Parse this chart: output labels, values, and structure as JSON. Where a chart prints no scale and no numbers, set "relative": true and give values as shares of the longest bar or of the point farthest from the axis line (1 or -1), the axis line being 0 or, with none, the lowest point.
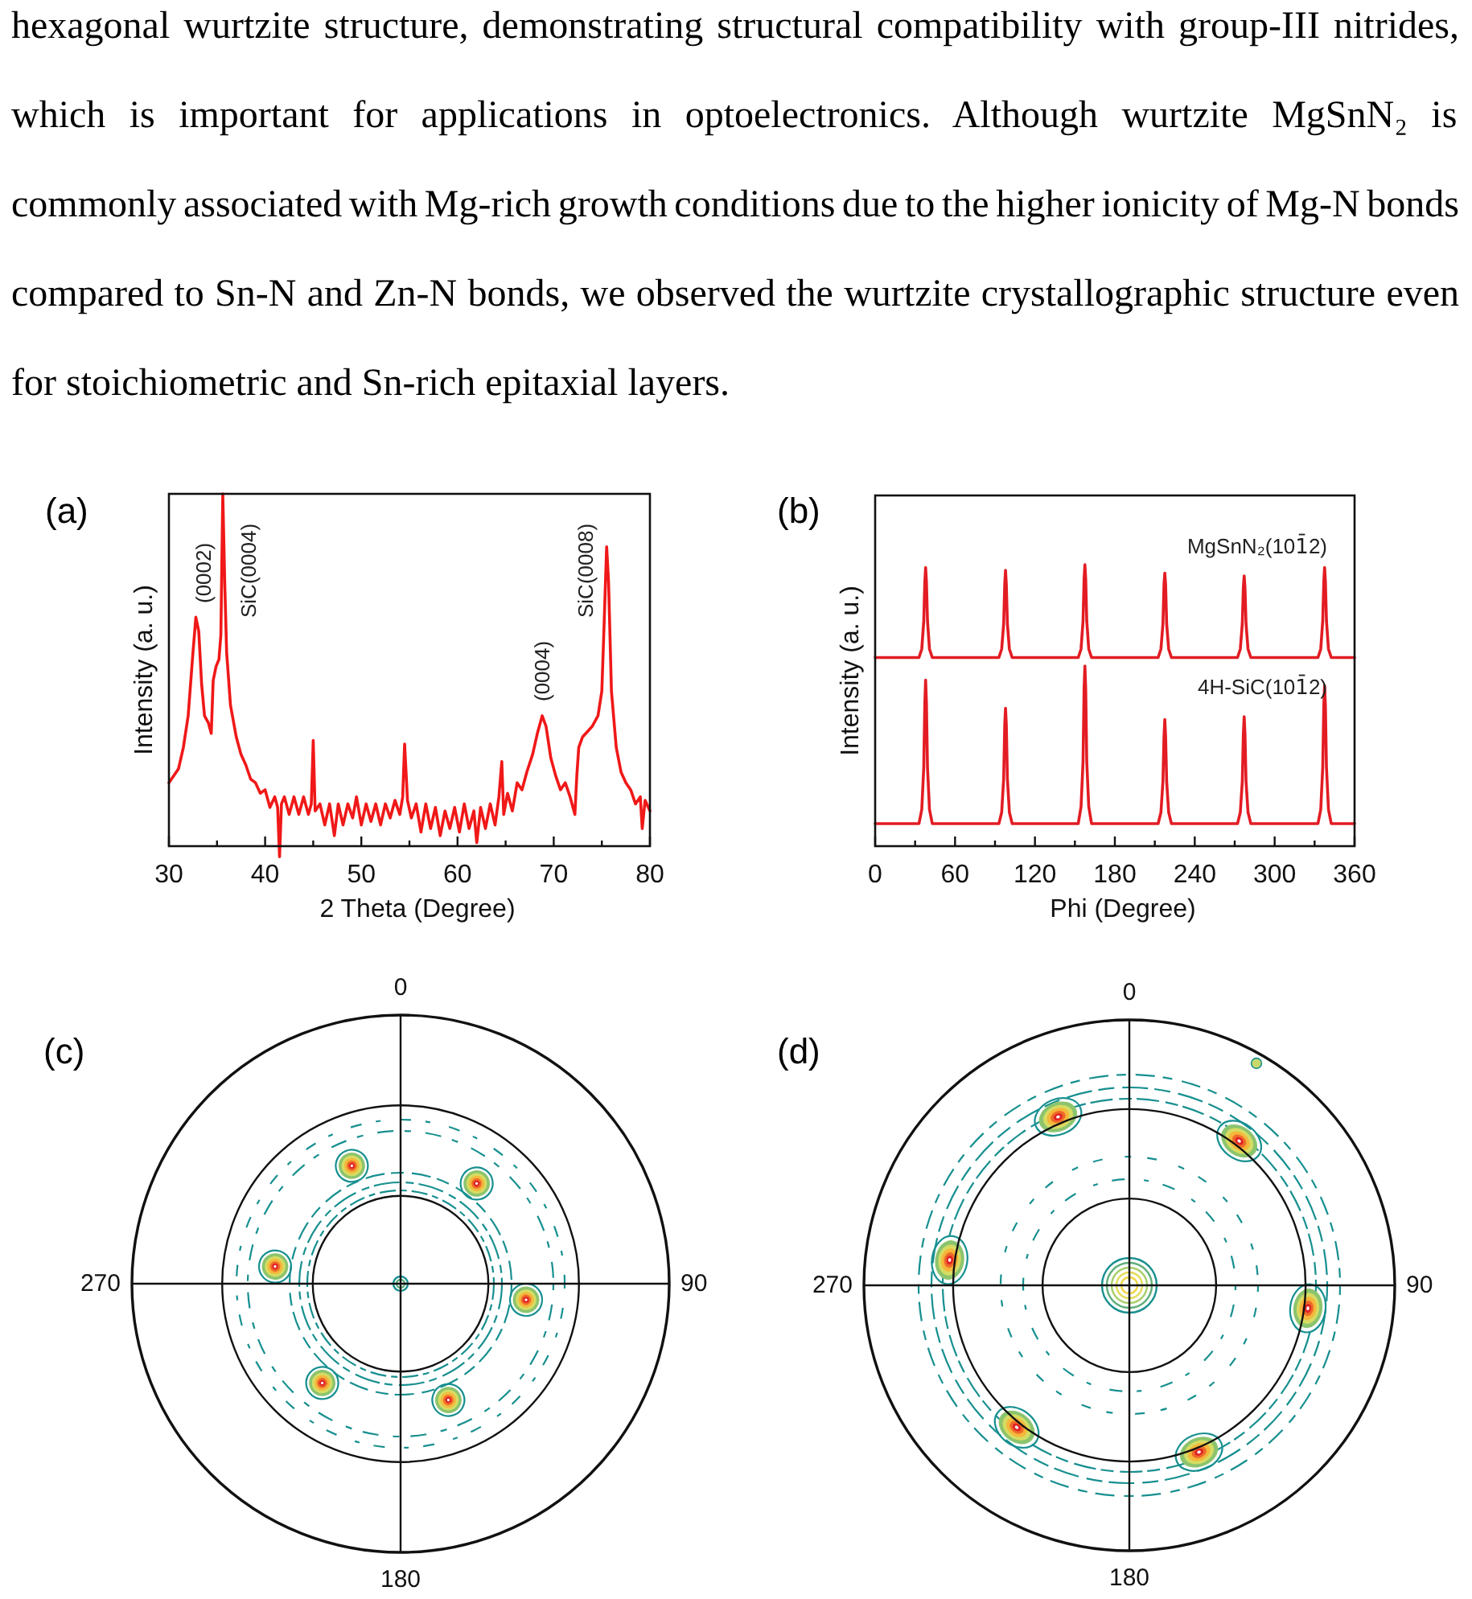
{
  "chart_data": [
    {
      "type": "other",
      "annotations": [
        "hexagonal wurtzite structure, demonstrating structural compatibility with group-III nitrides,",
        "which is important for applications in optoelectronics. Although wurtzite MgSnN₂ is",
        "commonly associated with Mg-rich growth conditions due to the higher ionicity of Mg-N bonds",
        "compared to Sn-N and Zn-N bonds, we observed the wurtzite crystallographic structure even",
        "for stoichiometric and Sn-rich epitaxial layers."
      ]
    },
    {
      "type": "line",
      "title": "(a)",
      "xlabel": "2 Theta (Degree)",
      "ylabel": "Intensity (a. u.)",
      "relative": true,
      "x": [
        30,
        30.5,
        31,
        31.5,
        32,
        32.5,
        32.8,
        33.1,
        33.4,
        33.7,
        34.1,
        34.4,
        34.6,
        34.9,
        35.2,
        35.4,
        35.6,
        35.8,
        36,
        36.4,
        37,
        37.5,
        38,
        38.5,
        39,
        39.5,
        40,
        40.5,
        41,
        41.3,
        41.5,
        41.7,
        42,
        42.5,
        43,
        43.5,
        44,
        44.5,
        44.8,
        45,
        45.2,
        45.7,
        46.2,
        46.7,
        47.2,
        47.6,
        48.1,
        48.6,
        49.1,
        49.5,
        50,
        50.5,
        51,
        51.5,
        52,
        52.5,
        53,
        53.5,
        54,
        54.3,
        54.5,
        54.8,
        55.2,
        55.7,
        56.2,
        56.7,
        57.2,
        57.7,
        58.2,
        58.7,
        59.2,
        59.7,
        60.2,
        60.7,
        61.2,
        61.7,
        62,
        62.4,
        62.9,
        63.4,
        63.9,
        64.3,
        64.6,
        64.8,
        65.2,
        65.7,
        66.2,
        66.7,
        67.2,
        67.8,
        68.3,
        68.8,
        69.2,
        69.7,
        70.2,
        70.7,
        71.2,
        71.7,
        72.2,
        72.4,
        72.6,
        73,
        74,
        74.6,
        75,
        75.2,
        75.5,
        75.7,
        76,
        76.5,
        77,
        77.5,
        78,
        78.5,
        79,
        79.2,
        79.5,
        80
      ],
      "series": [
        {
          "color": "#f01818",
          "values": [
            0.18,
            0.2,
            0.22,
            0.28,
            0.37,
            0.55,
            0.65,
            0.61,
            0.46,
            0.37,
            0.35,
            0.32,
            0.47,
            0.51,
            0.53,
            0.6,
            1,
            0.75,
            0.55,
            0.4,
            0.31,
            0.26,
            0.23,
            0.19,
            0.18,
            0.15,
            0.16,
            0.11,
            0.14,
            0.11,
            -0.03,
            0.12,
            0.14,
            0.09,
            0.14,
            0.09,
            0.14,
            0.09,
            0.12,
            0.3,
            0.1,
            0.12,
            0.06,
            0.12,
            0.03,
            0.12,
            0.06,
            0.12,
            0.08,
            0.14,
            0.06,
            0.12,
            0.07,
            0.12,
            0.06,
            0.12,
            0.08,
            0.13,
            0.09,
            0.14,
            0.29,
            0.13,
            0.08,
            0.12,
            0.04,
            0.12,
            0.05,
            0.11,
            0.03,
            0.1,
            0.05,
            0.11,
            0.04,
            0.12,
            0.05,
            0.1,
            0.01,
            0.11,
            0.05,
            0.12,
            0.06,
            0.14,
            0.24,
            0.09,
            0.15,
            0.1,
            0.18,
            0.16,
            0.21,
            0.26,
            0.32,
            0.37,
            0.34,
            0.25,
            0.2,
            0.16,
            0.18,
            0.14,
            0.09,
            0.2,
            0.28,
            0.31,
            0.34,
            0.37,
            0.44,
            0.6,
            0.85,
            0.75,
            0.44,
            0.28,
            0.21,
            0.18,
            0.16,
            0.12,
            0.14,
            0.05,
            0.13,
            0.1
          ]
        }
      ],
      "xlim": [
        30,
        80
      ],
      "xticks": [
        30,
        {
          "value": 35,
          "label": null
        },
        40,
        {
          "value": 45,
          "label": null
        },
        50,
        {
          "value": 55,
          "label": null
        },
        60,
        {
          "value": 65,
          "label": null
        },
        70,
        {
          "value": 75,
          "label": null
        },
        80
      ],
      "annotations": [
        "(0002)",
        "SiC(0004)",
        "(0004)",
        "SiC(0008)"
      ]
    },
    {
      "type": "line",
      "title": "(b)",
      "xlabel": "Phi (Degree)",
      "ylabel": "Intensity (a. u.)",
      "relative": true,
      "x": [
        0,
        32.9,
        35,
        36.5,
        37.3,
        37.9,
        38.5,
        39.3,
        40.8,
        42.9,
        92.9,
        95,
        96.5,
        97.3,
        97.9,
        98.5,
        99.3,
        100.8,
        102.9,
        152.5,
        154.6,
        156.1,
        156.9,
        157.5,
        158.1,
        158.9,
        160.4,
        162.5,
        212.5,
        214.6,
        216.1,
        216.9,
        217.5,
        218.1,
        218.9,
        220.4,
        222.5,
        272.1,
        274.2,
        275.7,
        276.5,
        277.1,
        277.7,
        278.5,
        280,
        282.1,
        332.5,
        334.6,
        336.1,
        336.9,
        337.5,
        338.1,
        338.9,
        340.4,
        342.5,
        360
      ],
      "series": [
        {
          "name": "MgSnN₂(101̄2)",
          "color": "#e31c23",
          "values": [
            0.67,
            0.67,
            0.7,
            0.8,
            0.94,
            0.99,
            0.94,
            0.8,
            0.7,
            0.67,
            0.67,
            0.7,
            0.79,
            0.93,
            0.98,
            0.93,
            0.79,
            0.7,
            0.67,
            0.67,
            0.7,
            0.8,
            0.95,
            1,
            0.95,
            0.8,
            0.7,
            0.67,
            0.67,
            0.7,
            0.79,
            0.93,
            0.97,
            0.93,
            0.79,
            0.7,
            0.67,
            0.67,
            0.7,
            0.79,
            0.92,
            0.96,
            0.92,
            0.79,
            0.7,
            0.67,
            0.67,
            0.7,
            0.8,
            0.94,
            0.99,
            0.94,
            0.8,
            0.7,
            0.67,
            0.67
          ]
        },
        {
          "name": "4H-SiC(101̄2)",
          "color": "#e31c23",
          "values": [
            0.08,
            0.08,
            0.13,
            0.28,
            0.51,
            0.59,
            0.51,
            0.28,
            0.13,
            0.08,
            0.08,
            0.12,
            0.24,
            0.43,
            0.49,
            0.43,
            0.24,
            0.12,
            0.08,
            0.08,
            0.14,
            0.3,
            0.56,
            0.64,
            0.56,
            0.3,
            0.14,
            0.08,
            0.08,
            0.12,
            0.23,
            0.39,
            0.45,
            0.39,
            0.23,
            0.12,
            0.08,
            0.08,
            0.12,
            0.23,
            0.4,
            0.46,
            0.4,
            0.23,
            0.12,
            0.08,
            0.08,
            0.13,
            0.28,
            0.5,
            0.57,
            0.5,
            0.28,
            0.13,
            0.08,
            0.08
          ]
        }
      ],
      "xlim": [
        0,
        360
      ],
      "xticks": [
        0,
        {
          "value": 30,
          "label": null
        },
        60,
        {
          "value": 90,
          "label": null
        },
        120,
        {
          "value": 150,
          "label": null
        },
        180,
        {
          "value": 210,
          "label": null
        },
        240,
        {
          "value": 270,
          "label": null
        },
        300,
        {
          "value": 330,
          "label": null
        },
        360
      ]
    },
    {
      "type": "other",
      "title": "(c)",
      "annotations": [
        "0",
        "90",
        "180",
        "270"
      ]
    },
    {
      "type": "other",
      "title": "(d)",
      "annotations": [
        "0",
        "90",
        "180",
        "270"
      ]
    }
  ]
}
